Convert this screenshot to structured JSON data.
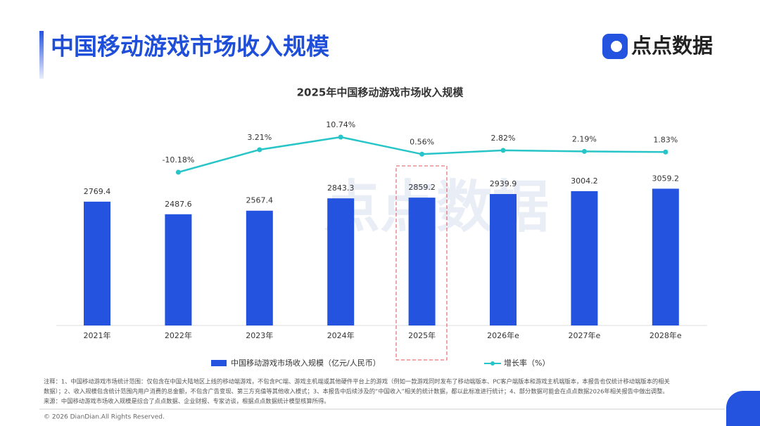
{
  "header": {
    "title": "中国移动游戏市场收入规模",
    "logo_text": "点点数据"
  },
  "chart_data": {
    "type": "bar-line",
    "title": "2025年中国移动游戏市场收入规模",
    "categories": [
      "2021年",
      "2022年",
      "2023年",
      "2024年",
      "2025年",
      "2026年e",
      "2027年e",
      "2028年e"
    ],
    "series": [
      {
        "name": "中国移动游戏市场收入规模（亿元/人民币）",
        "type": "bar",
        "color": "#2453e0",
        "values": [
          2769.4,
          2487.6,
          2567.4,
          2843.3,
          2859.2,
          2939.9,
          3004.2,
          3059.2
        ]
      },
      {
        "name": "增长率（%）",
        "type": "line",
        "color": "#27c4c8",
        "values": [
          null,
          -10.18,
          3.21,
          10.74,
          0.56,
          2.82,
          2.19,
          1.83
        ],
        "value_labels": [
          null,
          "-10.18%",
          "3.21%",
          "10.74%",
          "0.56%",
          "2.82%",
          "2.19%",
          "1.83%"
        ]
      }
    ]
  },
  "footnote": [
    "注释：1、中国移动游戏市场统计范围：仅包含在中国大陆地区上线的移动端游戏，不包含PC端、游戏主机端或其他硬件平台上的游戏（例如一款游戏同时发布了移动端版本、PC客户端版本和游戏主机端版本，本报告也仅统计移动端版本的相关",
    "数据）；2、收入规模包含统计范围内用户消费的总金额，不包含广告变现、第三方充值等其他收入模式；3、本报告中后续涉及的“中国收入”相关的统计数据，都以此标准进行统计；4、部分数据可能会在点点数据2026年相关报告中做出调整。",
    "来源：中国移动游戏市场收入规模是综合了点点数据、企业财报、专家访谈，根据点点数据统计模型核算所得。"
  ],
  "copyright": "© 2026 DianDian.All Rights Reserved."
}
